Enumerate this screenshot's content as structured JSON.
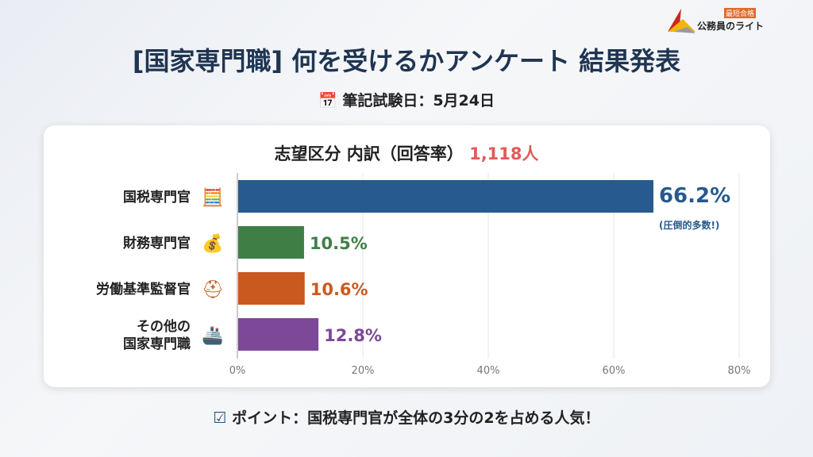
{
  "title": "[国家専門職] 何を受けるかアンケート 結果発表",
  "date_label": "筆記試験日：5月24日",
  "logo": {
    "tag": "最短合格",
    "name": "公務員のライト"
  },
  "footer": "ポイント：国税専門官が全体の3分の2を占める人気！",
  "chart_data": {
    "type": "bar",
    "orientation": "horizontal",
    "title": "志望区分 内訳（回答率）",
    "total": "1,118人",
    "categories": [
      "国税専門官",
      "財務専門官",
      "労働基準監督官",
      "その他の\n国家専門職"
    ],
    "values": [
      66.2,
      10.5,
      10.6,
      12.8
    ],
    "value_labels": [
      "66.2%",
      "10.5%",
      "10.6%",
      "12.8%"
    ],
    "annotation": "(圧倒的多数!)",
    "colors": [
      "#275a8e",
      "#3f7f46",
      "#c85a1f",
      "#7c4897"
    ],
    "xlim": [
      0,
      80
    ],
    "ticks": [
      "0%",
      "20%",
      "40%",
      "60%",
      "80%"
    ],
    "grid": true,
    "icons": [
      "calculator-tax-icon",
      "coins-growth-icon",
      "hardhat-scales-icon",
      "ship-tower-gear-badge-icon"
    ]
  }
}
